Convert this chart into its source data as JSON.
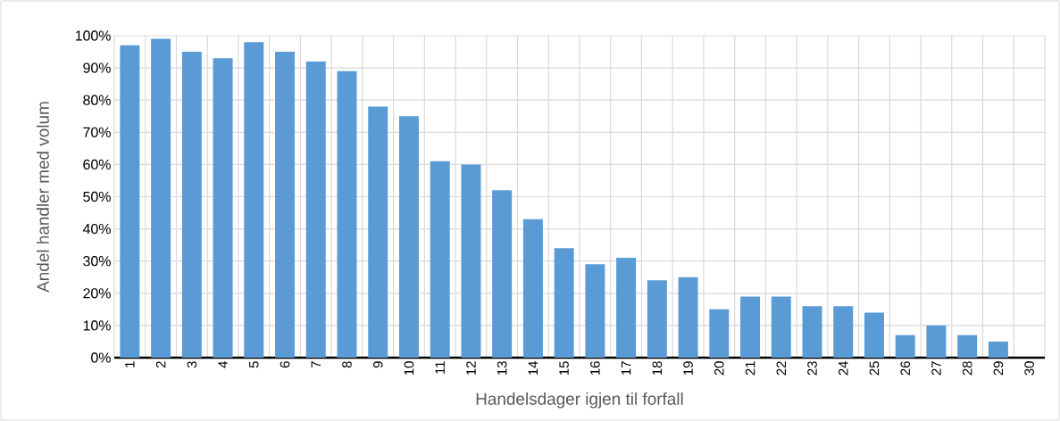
{
  "chart_data": {
    "type": "bar",
    "xlabel": "Handelsdager igjen til forfall",
    "ylabel": "Andel handler med volum",
    "categories": [
      "1",
      "2",
      "3",
      "4",
      "5",
      "6",
      "7",
      "8",
      "9",
      "10",
      "11",
      "12",
      "13",
      "14",
      "15",
      "16",
      "17",
      "18",
      "19",
      "20",
      "21",
      "22",
      "23",
      "24",
      "25",
      "26",
      "27",
      "28",
      "29",
      "30"
    ],
    "values": [
      97,
      99,
      95,
      93,
      98,
      95,
      92,
      89,
      78,
      75,
      61,
      60,
      52,
      43,
      34,
      29,
      31,
      24,
      25,
      15,
      19,
      19,
      16,
      16,
      14,
      7,
      10,
      7,
      5,
      0
    ],
    "color": "#5b9bd5",
    "ylim": [
      0,
      100
    ],
    "yticks": [
      {
        "value": 0,
        "label": "0%"
      },
      {
        "value": 10,
        "label": "10%"
      },
      {
        "value": 20,
        "label": "20%"
      },
      {
        "value": 30,
        "label": "30%"
      },
      {
        "value": 40,
        "label": "40%"
      },
      {
        "value": 50,
        "label": "50%"
      },
      {
        "value": 60,
        "label": "60%"
      },
      {
        "value": 70,
        "label": "70%"
      },
      {
        "value": 80,
        "label": "80%"
      },
      {
        "value": 90,
        "label": "90%"
      },
      {
        "value": 100,
        "label": "100%"
      }
    ],
    "grid": true
  }
}
